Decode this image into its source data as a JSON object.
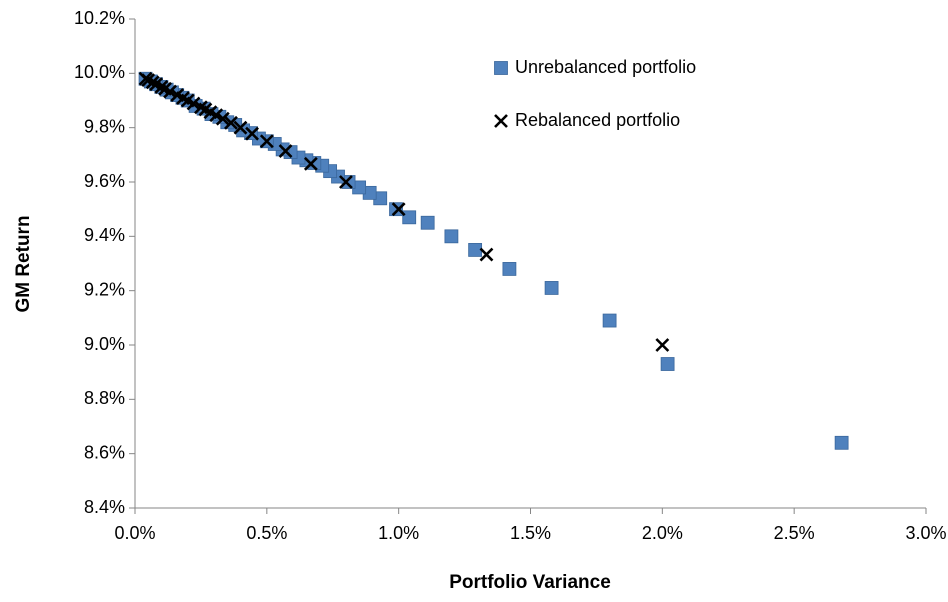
{
  "chart_data": {
    "type": "scatter",
    "xlabel": "Portfolio Variance",
    "ylabel": "GM Return",
    "xlim": [
      0,
      3.0
    ],
    "ylim": [
      8.4,
      10.2
    ],
    "xticks": [
      {
        "value": 0,
        "label": "0.0%"
      },
      {
        "value": 0.5,
        "label": "0.5%"
      },
      {
        "value": 1.0,
        "label": "1.0%"
      },
      {
        "value": 1.5,
        "label": "1.5%"
      },
      {
        "value": 2.0,
        "label": "2.0%"
      },
      {
        "value": 2.5,
        "label": "2.5%"
      },
      {
        "value": 3.0,
        "label": "3.0%"
      }
    ],
    "yticks": [
      {
        "value": 8.4,
        "label": "8.4%"
      },
      {
        "value": 8.6,
        "label": "8.6%"
      },
      {
        "value": 8.8,
        "label": "8.8%"
      },
      {
        "value": 9.0,
        "label": "9.0%"
      },
      {
        "value": 9.2,
        "label": "9.2%"
      },
      {
        "value": 9.4,
        "label": "9.4%"
      },
      {
        "value": 9.6,
        "label": "9.6%"
      },
      {
        "value": 9.8,
        "label": "9.8%"
      },
      {
        "value": 10.0,
        "label": "10.0%"
      },
      {
        "value": 10.2,
        "label": "10.2%"
      }
    ],
    "grid": false,
    "legend": "upper right",
    "series": [
      {
        "name": "Unrebalanced portfolio",
        "color": "#4f81bd",
        "marker": "square",
        "x": [
          2.68,
          2.02,
          1.8,
          1.58,
          1.42,
          1.29,
          1.2,
          1.11,
          1.04,
          0.99,
          0.93,
          0.89,
          0.85,
          0.81,
          0.77,
          0.74,
          0.71,
          0.68,
          0.65,
          0.62,
          0.59,
          0.56,
          0.53,
          0.5,
          0.47,
          0.44,
          0.41,
          0.38,
          0.35,
          0.32,
          0.29,
          0.26,
          0.23,
          0.2,
          0.18,
          0.16,
          0.14,
          0.12,
          0.1,
          0.08,
          0.06,
          0.04
        ],
        "values": [
          8.64,
          8.93,
          9.09,
          9.21,
          9.28,
          9.35,
          9.4,
          9.45,
          9.47,
          9.5,
          9.54,
          9.56,
          9.58,
          9.6,
          9.62,
          9.64,
          9.66,
          9.67,
          9.68,
          9.69,
          9.71,
          9.72,
          9.74,
          9.75,
          9.76,
          9.78,
          9.79,
          9.81,
          9.82,
          9.84,
          9.85,
          9.87,
          9.88,
          9.9,
          9.91,
          9.92,
          9.93,
          9.94,
          9.95,
          9.96,
          9.97,
          9.98
        ]
      },
      {
        "name": "Rebalanced portfolio",
        "color": "#000000",
        "marker": "x",
        "x": [
          2.0,
          1.333,
          1.0,
          0.8,
          0.667,
          0.571,
          0.5,
          0.444,
          0.4,
          0.364,
          0.333,
          0.308,
          0.286,
          0.267,
          0.25,
          0.222,
          0.2,
          0.182,
          0.16,
          0.133,
          0.114,
          0.1,
          0.08,
          0.067,
          0.05,
          0.04
        ],
        "values": [
          9.0,
          9.333,
          9.5,
          9.6,
          9.667,
          9.714,
          9.75,
          9.778,
          9.8,
          9.818,
          9.833,
          9.846,
          9.857,
          9.867,
          9.875,
          9.889,
          9.9,
          9.909,
          9.92,
          9.933,
          9.943,
          9.95,
          9.96,
          9.967,
          9.975,
          9.98
        ]
      }
    ]
  }
}
